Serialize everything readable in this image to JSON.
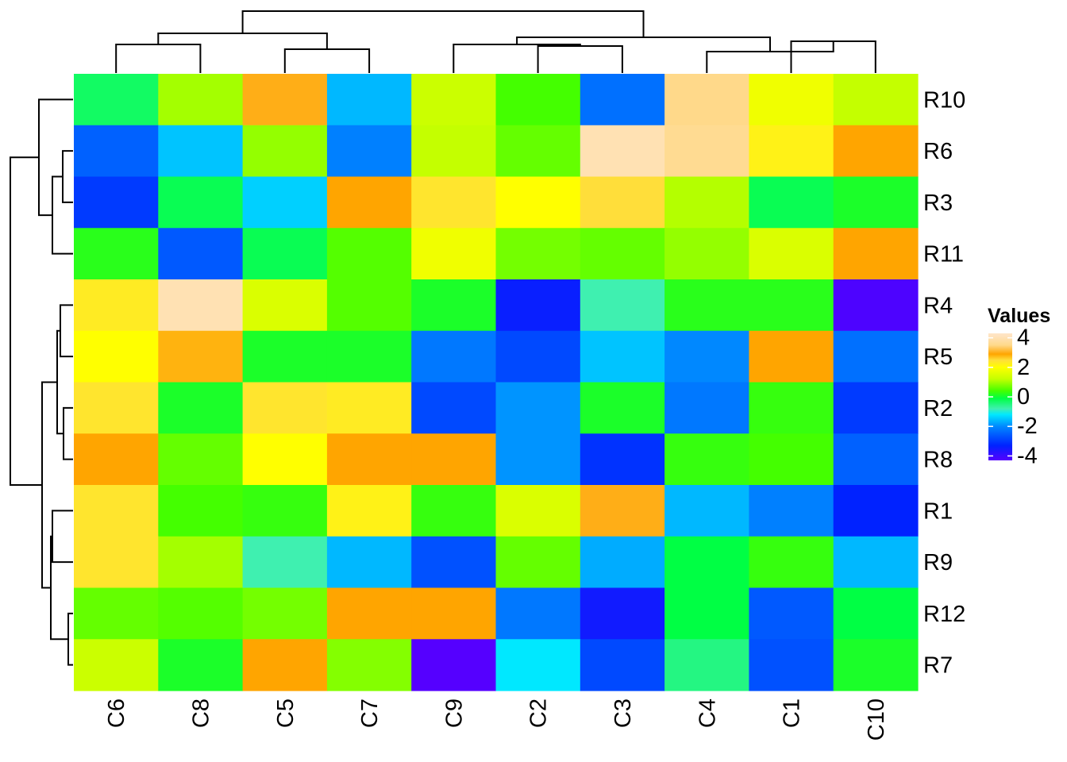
{
  "chart_data": {
    "type": "heatmap",
    "columns": [
      "C6",
      "C8",
      "C5",
      "C7",
      "C9",
      "C2",
      "C3",
      "C4",
      "C1",
      "C10"
    ],
    "rows": [
      "R10",
      "R6",
      "R3",
      "R11",
      "R4",
      "R5",
      "R2",
      "R8",
      "R1",
      "R9",
      "R12",
      "R7"
    ],
    "values": [
      [
        -0.3,
        1.0,
        3.0,
        -1.6,
        1.3,
        0.4,
        -2.3,
        3.5,
        1.8,
        1.2
      ],
      [
        -2.5,
        -1.5,
        0.9,
        -2.1,
        1.2,
        0.6,
        4.0,
        3.6,
        2.2,
        2.9
      ],
      [
        -3.0,
        -0.2,
        -1.4,
        2.9,
        2.4,
        2.0,
        2.5,
        1.1,
        -0.2,
        0.1
      ],
      [
        0.2,
        -2.6,
        -0.2,
        0.5,
        1.8,
        0.7,
        0.6,
        0.9,
        1.5,
        2.9
      ],
      [
        2.3,
        4.0,
        1.5,
        0.5,
        0.1,
        -3.4,
        -0.8,
        0.2,
        0.2,
        -4.2
      ],
      [
        2.0,
        2.8,
        0.1,
        0.1,
        -2.2,
        -2.8,
        -1.5,
        -2.0,
        2.9,
        -2.3
      ],
      [
        2.4,
        0.1,
        2.4,
        2.3,
        -2.8,
        -1.9,
        0.1,
        -2.2,
        0.3,
        -3.0
      ],
      [
        2.9,
        0.6,
        2.0,
        2.9,
        2.9,
        -1.9,
        -3.1,
        0.3,
        0.4,
        -2.5
      ],
      [
        2.4,
        0.4,
        0.3,
        2.2,
        0.3,
        1.5,
        3.0,
        -1.6,
        -2.1,
        -3.3
      ],
      [
        2.4,
        1.0,
        -0.8,
        -1.6,
        -2.7,
        0.6,
        -1.7,
        -0.1,
        0.3,
        -1.6
      ],
      [
        0.6,
        0.5,
        0.7,
        2.9,
        2.9,
        -2.2,
        -3.5,
        -0.1,
        -2.6,
        -0.1
      ],
      [
        1.3,
        0.1,
        2.9,
        0.8,
        -4.3,
        -1.2,
        -2.8,
        -0.5,
        -2.7,
        0.1
      ]
    ],
    "color_stops": [
      {
        "value": -4.3,
        "color": "#5500ff"
      },
      {
        "value": -3.3,
        "color": "#0022ff"
      },
      {
        "value": -2.0,
        "color": "#0088ff"
      },
      {
        "value": -1.2,
        "color": "#00e8ff"
      },
      {
        "value": -0.8,
        "color": "#3ff0b0"
      },
      {
        "value": -0.1,
        "color": "#00ff44"
      },
      {
        "value": 0.4,
        "color": "#44ff00"
      },
      {
        "value": 1.2,
        "color": "#c4ff00"
      },
      {
        "value": 2.0,
        "color": "#ffff00"
      },
      {
        "value": 2.5,
        "color": "#ffde3a"
      },
      {
        "value": 2.9,
        "color": "#ffa500"
      },
      {
        "value": 3.5,
        "color": "#ffd98a"
      },
      {
        "value": 4.2,
        "color": "#ffe4c4"
      }
    ],
    "legend": {
      "title": "Values",
      "ticks": [
        4,
        2,
        0,
        -2,
        -4
      ],
      "tick_labels": [
        "4",
        "2",
        "0",
        "-2",
        "-4"
      ],
      "range": [
        -4.3,
        4.3
      ],
      "placement": "right"
    },
    "column_dendrogram": {
      "merges": [
        [
          "C6",
          "C8"
        ],
        [
          "C5",
          "C7"
        ],
        [
          "C2",
          "C3"
        ],
        [
          "C1",
          "C10"
        ],
        [
          [
            "C6",
            "C8"
          ],
          [
            "C5",
            "C7"
          ]
        ],
        [
          [
            "C4"
          ],
          [
            "C1",
            "C10"
          ]
        ],
        [
          [
            "C9"
          ],
          [
            "C2",
            "C3"
          ]
        ],
        [
          [
            "C9",
            "C2",
            "C3"
          ],
          [
            "C4",
            "C1",
            "C10"
          ]
        ],
        [
          [
            "C6",
            "C8",
            "C5",
            "C7"
          ],
          [
            "C9",
            "C2",
            "C3",
            "C4",
            "C1",
            "C10"
          ]
        ]
      ]
    },
    "row_dendrogram": {
      "merges": [
        [
          "R6",
          "R3"
        ],
        [
          "R1",
          "R9"
        ],
        [
          "R2",
          "R8"
        ],
        [
          "R12",
          "R7"
        ],
        [
          [
            "R6",
            "R3"
          ],
          [
            "R11"
          ]
        ],
        [
          [
            "R4"
          ],
          [
            "R5"
          ]
        ],
        [
          [
            "R4",
            "R5"
          ],
          [
            "R2",
            "R8"
          ]
        ],
        [
          [
            "R1",
            "R9"
          ],
          [
            "R12",
            "R7"
          ]
        ],
        [
          [
            "R10"
          ],
          [
            "R6",
            "R3",
            "R11"
          ]
        ],
        [
          [
            "R4",
            "R5",
            "R2",
            "R8"
          ],
          [
            "R1",
            "R9",
            "R12",
            "R7"
          ]
        ],
        [
          [
            "R10",
            "R6",
            "R3",
            "R11"
          ],
          [
            "R4",
            "R5",
            "R2",
            "R8",
            "R1",
            "R9",
            "R12",
            "R7"
          ]
        ]
      ]
    }
  }
}
